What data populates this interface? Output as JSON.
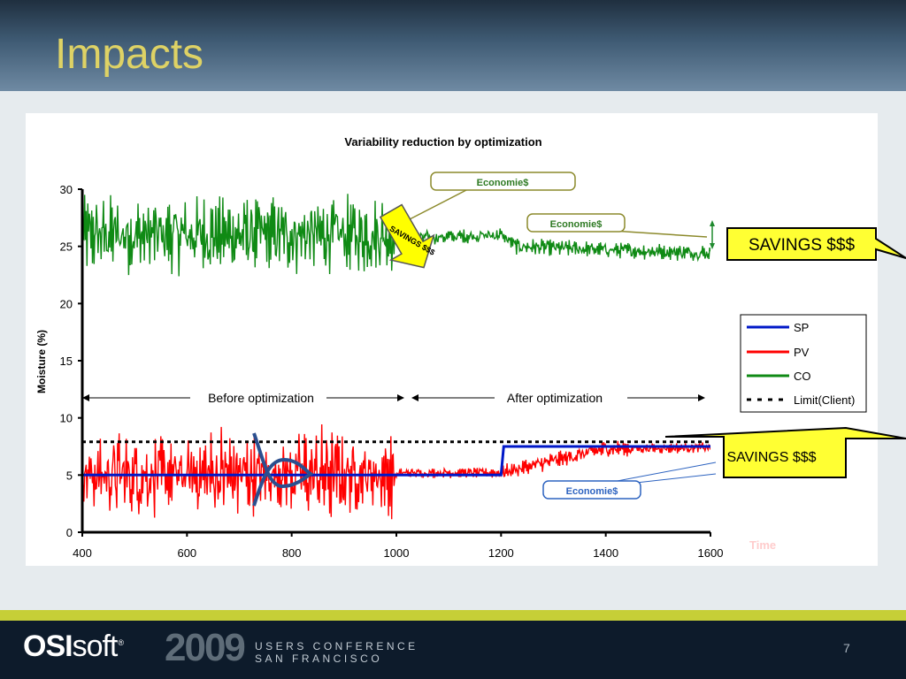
{
  "slide": {
    "title": "Impacts",
    "page_number": "7"
  },
  "footer": {
    "brand_bold": "OSI",
    "brand_light": "soft",
    "brand_mark": "®",
    "year": "2009",
    "conf_line1": "USERS CONFERENCE",
    "conf_line2": "SAN FRANCISCO"
  },
  "colors": {
    "title": "#ded265",
    "sp": "#0018c8",
    "pv": "#ff0000",
    "co": "#0f8a14",
    "callout_fill": "#ffff33"
  },
  "annotations": {
    "economies_top": "Economie$",
    "economies_co": "Economie$",
    "economies_pv": "Economie$",
    "savings_arrow": "SAVINGS $$$",
    "savings_co": "SAVINGS $$$",
    "savings_pv": "SAVINGS $$$",
    "before": "Before optimization",
    "after": "After optimization",
    "time": "Time"
  },
  "chart_data": {
    "type": "line",
    "title": "Variability reduction by optimization",
    "ylabel": "Moisture (%)",
    "xlabel": "Time",
    "xlim": [
      400,
      1600
    ],
    "ylim": [
      0,
      30
    ],
    "x_ticks": [
      "400",
      "600",
      "800",
      "1000",
      "1200",
      "1400",
      "1600"
    ],
    "y_ticks": [
      "0",
      "5",
      "10",
      "15",
      "20",
      "25",
      "30"
    ],
    "legend_position": "right",
    "series": [
      {
        "name": "SP",
        "color": "#0018c8",
        "points": [
          [
            400,
            5
          ],
          [
            1200,
            5
          ],
          [
            1205,
            7.5
          ],
          [
            1600,
            7.5
          ]
        ]
      },
      {
        "name": "PV",
        "color": "#ff0000",
        "points": [
          [
            400,
            5
          ],
          [
            1000,
            5
          ],
          [
            1010,
            5.2
          ],
          [
            1200,
            5.2
          ],
          [
            1400,
            7.3
          ],
          [
            1600,
            7.4
          ]
        ]
      },
      {
        "name": "CO",
        "color": "#0f8a14",
        "points": [
          [
            400,
            26
          ],
          [
            1000,
            26
          ],
          [
            1020,
            25.7
          ],
          [
            1200,
            26
          ],
          [
            1230,
            25
          ],
          [
            1400,
            24.7
          ],
          [
            1600,
            24.4
          ]
        ]
      },
      {
        "name": "Limit(Client)",
        "color": "#000000",
        "dashed": true,
        "points": [
          [
            400,
            7.9
          ],
          [
            1600,
            7.9
          ]
        ]
      }
    ]
  }
}
